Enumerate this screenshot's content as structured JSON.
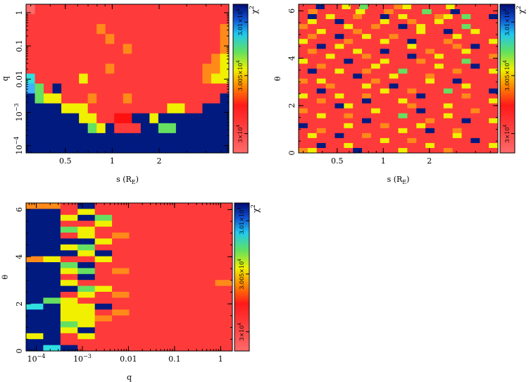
{
  "chart_data": [
    {
      "type": "heatmap",
      "id": "q_vs_s",
      "xlabel": "s (R",
      "xlabel_sub": "E",
      "xlabel_tail": ")",
      "ylabel": "q",
      "x_scale": "log",
      "y_scale": "log",
      "xlim": [
        0.28,
        5.6
      ],
      "ylim": [
        6e-05,
        1.8
      ],
      "x_ticks": [
        {
          "v": 0.5,
          "label": "0.5"
        },
        {
          "v": 1,
          "label": "1"
        },
        {
          "v": 2,
          "label": "2"
        }
      ],
      "y_ticks": [
        {
          "v": 0.0001,
          "label": "10",
          "sup": "−4"
        },
        {
          "v": 0.001,
          "label": "10",
          "sup": "−3"
        },
        {
          "v": 0.01,
          "label": "0.01"
        },
        {
          "v": 0.1,
          "label": "0.1"
        },
        {
          "v": 1,
          "label": "1"
        }
      ],
      "colorbar": {
        "label": "χ",
        "sup": "2",
        "ticks": [
          "3×10",
          "3.005×10",
          "3.01×10"
        ],
        "tick_sup": "4"
      },
      "rows": [
        "wrrrrrrrrrrrrrrrrrrrrrr",
        "rrrrrrrrrrrrrrrrrrrrrrr",
        "rrrrrrrrorrrrrrrrrrrrro",
        "rrrrrrrrrorrrrrrrrrrrro",
        "rrrrrrrrrrrorrrrrrrrrro",
        "rrrrrrrrrrrrrrrrrrrrroy",
        "rrrrrrrrrorrrrrrrrrrooy",
        "crrrrryrrrrrrrrrrrrroyy",
        "lgrbrrrrrrrrrrrrrrrrrrr",
        "bgyyrrrorrrorrrrrrrrrrb",
        "bbbbyyyrrrrrrrrryyrrbbb",
        "bbbbbbyyrrnnbbybbbbbbbb",
        "bbbbbbbgybrrrbbggbbbbbb",
        "bbbbbbbbbbbbbbbbbbbbbbb",
        "bbbbbbbbbbbbbbbbbbbbbbb"
      ]
    },
    {
      "type": "heatmap",
      "id": "theta_vs_s",
      "xlabel": "s (R",
      "xlabel_sub": "E",
      "xlabel_tail": ")",
      "ylabel": "θ",
      "x_scale": "log",
      "y_scale": "linear",
      "xlim": [
        0.28,
        5.6
      ],
      "ylim": [
        0,
        6.28
      ],
      "x_ticks": [
        {
          "v": 0.5,
          "label": "0.5"
        },
        {
          "v": 1,
          "label": "1"
        },
        {
          "v": 2,
          "label": "2"
        }
      ],
      "y_ticks": [
        {
          "v": 0,
          "label": "0"
        },
        {
          "v": 2,
          "label": "2"
        },
        {
          "v": 4,
          "label": "4"
        },
        {
          "v": 6,
          "label": "6"
        }
      ],
      "colorbar": {
        "label": "χ",
        "sup": "2",
        "ticks": [
          "3×10",
          "3.005×10",
          "3.01×10"
        ],
        "tick_sup": "4"
      },
      "rows": [
        "rrbrryrgrrroyrrrryrrrrr",
        "rorrrryrrorrrgrrbrrrr",
        "rbryrrorrbryrrroyrgrrb",
        "ryrrbrrrryrrorryrrrrrr",
        "orrrryrrorrbryrrrrgrrr",
        "rryrrrorrrrrryrrbrryrr",
        "rorrbrryrrorrrrrryrrrr",
        "yrrrrorrryrrbrrrorrrry",
        "rrbryrrrrrrryrrrrorbrr",
        "rorrrryrrbrrrrorrryrrr",
        "rrryrrrorrrrbrryrrrrro",
        "yrrrrbrrryrrrorrrrgrrr",
        "rrorrrrryrrrrrryrrrbrr",
        "rbrryrrorrrgrrrrrorrry",
        "rrrrrrbrrryrrrorrrrrrr",
        "oryrrrrrorrrrryrrbrrrr",
        "rrrorrryrrbrrrrrrryrrr",
        "rrbrrrrrryrrorrrgrrrrb",
        "yrrryrrorrrrrbrrrrorrr",
        "rrorrrrbrrryrrrrrrrrry",
        "rrrrbyrrrrrrorrryrrrrr",
        "orrrrrrryrrrrbrrrrrorr",
        "rryrrorrrrrgrrrryrrrrr",
        "rrrrrrrbrrrrrrorrrbrry",
        "brrrryrrrorrryrrrrrrrr",
        "rrorrrrrrrryrrbrrorrrr",
        "ryrrbrrorrrrrrrrryrrrr",
        "rrrrrrrrryrrorrrrrrbrr",
        "rrbrryrrrrrrrryrrrrrry",
        "oyrrrrbrrrryrrrrorrrrr"
      ]
    },
    {
      "type": "heatmap",
      "id": "theta_vs_q",
      "xlabel": "q",
      "ylabel": "θ",
      "x_scale": "log",
      "y_scale": "linear",
      "xlim": [
        6e-05,
        1.8
      ],
      "ylim": [
        0,
        6.28
      ],
      "x_ticks": [
        {
          "v": 0.0001,
          "label": "10",
          "sup": "−4"
        },
        {
          "v": 0.001,
          "label": "10",
          "sup": "−3"
        },
        {
          "v": 0.01,
          "label": "0.01"
        },
        {
          "v": 0.1,
          "label": "0.1"
        },
        {
          "v": 1,
          "label": "1"
        }
      ],
      "y_ticks": [
        {
          "v": 0,
          "label": "0"
        },
        {
          "v": 2,
          "label": "2"
        },
        {
          "v": 4,
          "label": "4"
        },
        {
          "v": 6,
          "label": "6"
        }
      ],
      "colorbar": {
        "label": "χ",
        "sup": "2",
        "ticks": [
          "3×10",
          "3.005×10",
          "3.01×10"
        ],
        "tick_sup": "4"
      },
      "rows": [
        "oorbrrrrrrrr",
        "bbryrrrrrrrr",
        "bbybgrrrrrrr",
        "bbrryrrrrrrr",
        "bbgyrrrrrrrr",
        "bbryrorrrrrr",
        "bbbbyrrrrrrr",
        "bbygrrrrrrrr",
        "bbbybrrrrrrr",
        "oyrryrrrrrrr",
        "bbgbrrrrrrrr",
        "bbygrorrrrrr",
        "bbrbrrrrrrrr",
        "bbyrrrrrrrro",
        "bbbgyrrrrrrr",
        "bbryrorrrrrr",
        "bgyrrrrrrrrr",
        "cbyybrrrrrrr",
        "bbyyrorrrrrr",
        "bbyyorrrrrrr",
        "bbgyrrrrrrrr",
        "bbybrrrrrrrr",
        "ybryrrrrrrrr",
        "bbrrrrrrrrrr",
        "bcbrrrrrrrrr"
      ]
    }
  ]
}
